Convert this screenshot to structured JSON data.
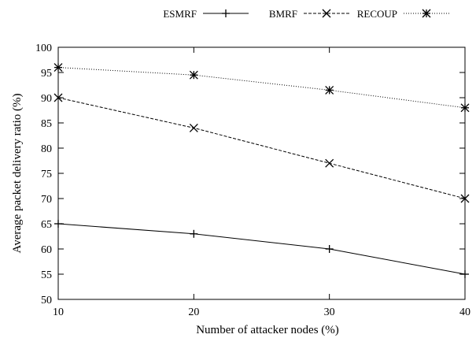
{
  "chart_data": {
    "type": "line",
    "xlabel": "Number of attacker nodes (%)",
    "ylabel": "Average packet delivery ratio (%)",
    "xlim": [
      10,
      40
    ],
    "ylim": [
      50,
      100
    ],
    "x_ticks": [
      "10",
      "20",
      "30",
      "40"
    ],
    "y_ticks": [
      "50",
      "55",
      "60",
      "65",
      "70",
      "75",
      "80",
      "85",
      "90",
      "95",
      "100"
    ],
    "x": [
      10,
      20,
      30,
      40
    ],
    "grid": false,
    "legend_position": "top",
    "series": [
      {
        "name": "ESMRF",
        "values": [
          65,
          63,
          60,
          55
        ],
        "marker": "plus",
        "line": "solid"
      },
      {
        "name": "BMRF",
        "values": [
          90,
          84,
          77,
          70
        ],
        "marker": "cross",
        "line": "dashed"
      },
      {
        "name": "RECOUP",
        "values": [
          96,
          94.5,
          91.5,
          88
        ],
        "marker": "asterisk",
        "line": "dotted"
      }
    ]
  }
}
